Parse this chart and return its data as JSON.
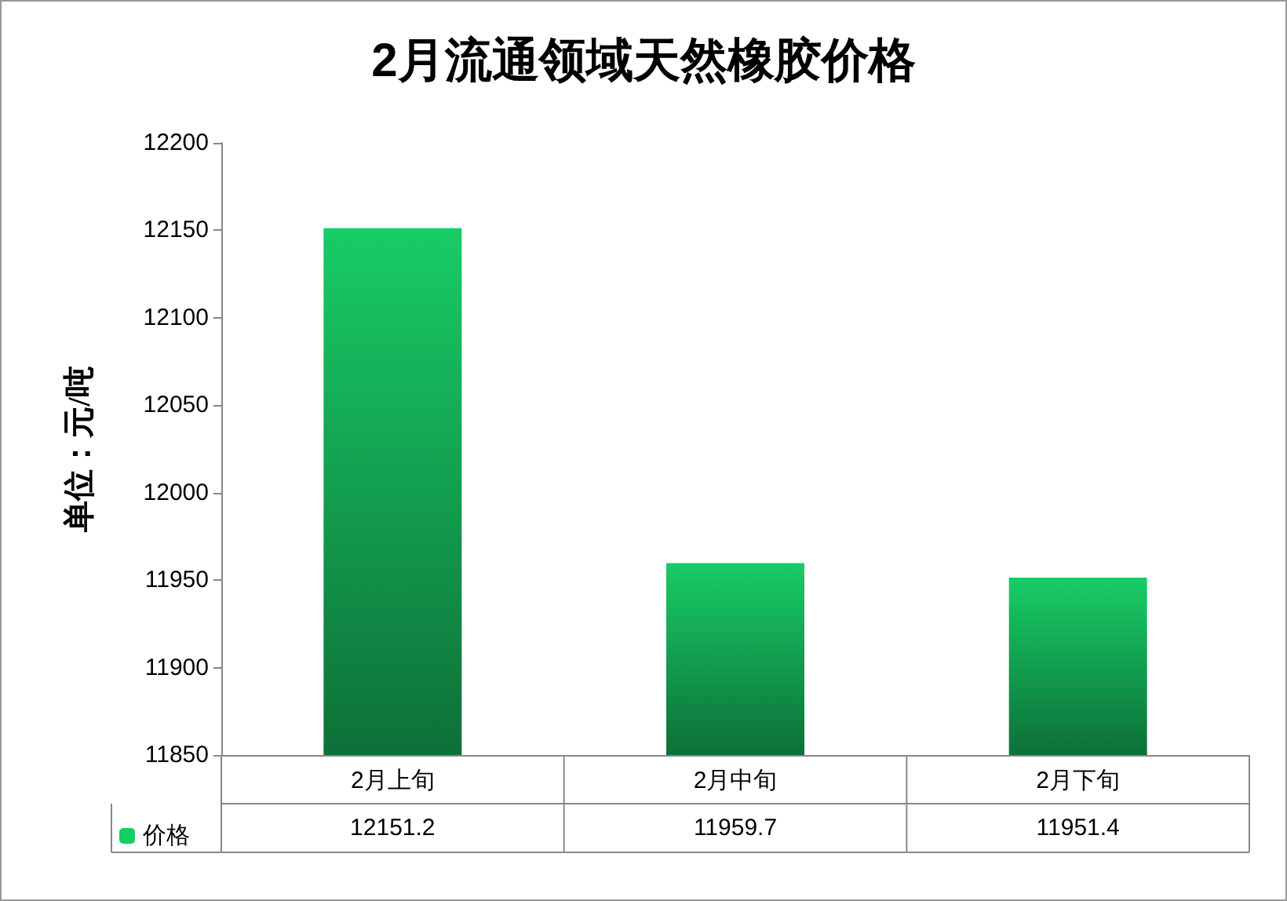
{
  "chart_data": {
    "type": "bar",
    "title": "2月流通领域天然橡胶价格",
    "ylabel": "单位：元/吨",
    "categories": [
      "2月上旬",
      "2月中旬",
      "2月下旬"
    ],
    "series": [
      {
        "name": "价格",
        "color": "#18cc66",
        "values": [
          12151.2,
          11959.7,
          11951.4
        ]
      }
    ],
    "ylim": [
      11850,
      12200
    ],
    "yticks": [
      11850,
      11900,
      11950,
      12000,
      12050,
      12100,
      12150,
      12200
    ],
    "data_labels": true,
    "legend": "bottom left",
    "grid": false
  }
}
